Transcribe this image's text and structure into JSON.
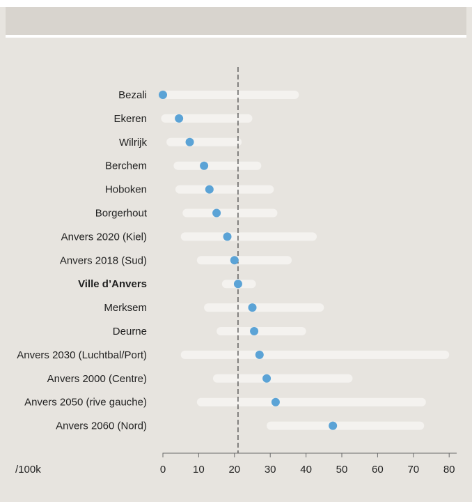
{
  "chart_data": {
    "type": "dot-range",
    "unit_label": "/100k",
    "xlim": [
      0,
      82
    ],
    "x_ticks": [
      0,
      10,
      20,
      30,
      40,
      50,
      60,
      70,
      80
    ],
    "reference_value": 21,
    "reference_style": "dashed",
    "highlight_category": "Ville d’Anvers",
    "colors": {
      "background": "#e7e4df",
      "range_bar": "#f4f2ef",
      "dot": "#5ba3d6",
      "reference_line": "#3b3b3b"
    },
    "rows": [
      {
        "label": "Bezali",
        "value": 0,
        "range": [
          0,
          38
        ]
      },
      {
        "label": "Ekeren",
        "value": 4.5,
        "range": [
          -0.5,
          25
        ]
      },
      {
        "label": "Wilrijk",
        "value": 7.5,
        "range": [
          1,
          22
        ]
      },
      {
        "label": "Berchem",
        "value": 11.5,
        "range": [
          3,
          27.5
        ]
      },
      {
        "label": "Hoboken",
        "value": 13,
        "range": [
          3.5,
          31
        ]
      },
      {
        "label": "Borgerhout",
        "value": 15,
        "range": [
          5.5,
          32
        ]
      },
      {
        "label": "Anvers 2020 (Kiel)",
        "value": 18,
        "range": [
          5,
          43
        ]
      },
      {
        "label": "Anvers 2018 (Sud)",
        "value": 20,
        "range": [
          9.5,
          36
        ]
      },
      {
        "label": "Ville d’Anvers",
        "value": 21,
        "range": [
          16.5,
          26
        ]
      },
      {
        "label": "Merksem",
        "value": 25,
        "range": [
          11.5,
          45
        ]
      },
      {
        "label": "Deurne",
        "value": 25.5,
        "range": [
          15,
          40
        ]
      },
      {
        "label": "Anvers 2030 (Luchtbal/Port)",
        "value": 27,
        "range": [
          5,
          80
        ]
      },
      {
        "label": "Anvers 2000 (Centre)",
        "value": 29,
        "range": [
          14,
          53
        ]
      },
      {
        "label": "Anvers 2050 (rive gauche)",
        "value": 31.5,
        "range": [
          9.5,
          73.5
        ]
      },
      {
        "label": "Anvers 2060 (Nord)",
        "value": 47.5,
        "range": [
          29,
          73
        ]
      }
    ]
  }
}
